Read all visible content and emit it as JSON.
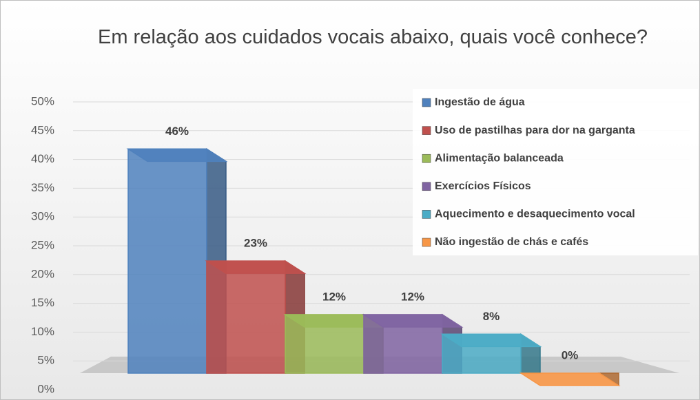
{
  "chart_data": {
    "type": "bar3d",
    "title": "Em relação aos cuidados vocais abaixo, quais você conhece?",
    "categories": [
      "Ingestão de água",
      "Uso de pastilhas para dor na garganta",
      "Alimentação balanceada",
      "Exercícios Físicos",
      "Aquecimento e desaquecimento vocal",
      "Não ingestão de chás e cafés"
    ],
    "values": [
      46,
      23,
      12,
      12,
      8,
      0
    ],
    "value_labels": [
      "46%",
      "23%",
      "12%",
      "12%",
      "8%",
      "0%"
    ],
    "colors": [
      "#4f81bd",
      "#c0504d",
      "#9bbb59",
      "#8064a2",
      "#4bacc6",
      "#f79646"
    ],
    "ylim": [
      0,
      50
    ],
    "yticks": [
      {
        "value": 0,
        "label": "0%"
      },
      {
        "value": 5,
        "label": "5%"
      },
      {
        "value": 10,
        "label": "10%"
      },
      {
        "value": 15,
        "label": "15%"
      },
      {
        "value": 20,
        "label": "20%"
      },
      {
        "value": 25,
        "label": "25%"
      },
      {
        "value": 30,
        "label": "30%"
      },
      {
        "value": 35,
        "label": "35%"
      },
      {
        "value": 40,
        "label": "40%"
      },
      {
        "value": 45,
        "label": "45%"
      },
      {
        "value": 50,
        "label": "50%"
      }
    ],
    "grid": true,
    "legend": "top-right"
  }
}
